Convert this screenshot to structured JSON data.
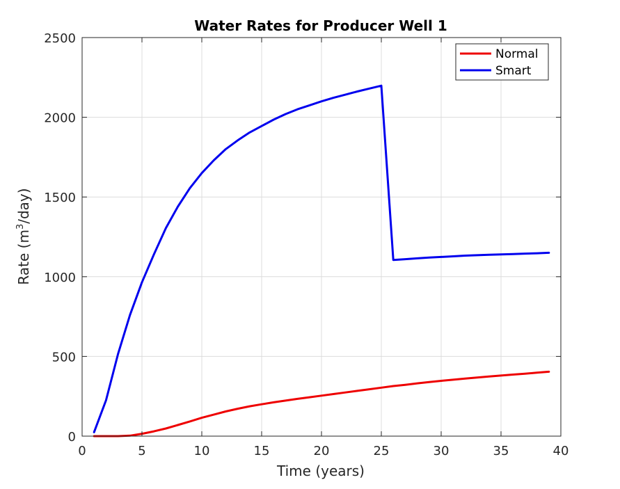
{
  "chart_data": {
    "type": "line",
    "title": "Water Rates for Producer Well 1",
    "xlabel": "Time (years)",
    "ylabel_main": "Rate (m",
    "ylabel_sup": "3",
    "ylabel_tail": "/day)",
    "xlim": [
      0,
      40
    ],
    "ylim": [
      0,
      2500
    ],
    "xticks": [
      0,
      5,
      10,
      15,
      20,
      25,
      30,
      35,
      40
    ],
    "yticks": [
      0,
      500,
      1000,
      1500,
      2000,
      2500
    ],
    "xtick_labels": [
      "0",
      "5",
      "10",
      "15",
      "20",
      "25",
      "30",
      "35",
      "40"
    ],
    "ytick_labels": [
      "0",
      "500",
      "1000",
      "1500",
      "2000",
      "2500"
    ],
    "grid": true,
    "legend_position": "top-right",
    "series": [
      {
        "name": "Normal",
        "color": "#ee0000",
        "x": [
          1,
          2,
          3,
          4,
          5,
          6,
          7,
          8,
          9,
          10,
          11,
          12,
          13,
          14,
          15,
          16,
          17,
          18,
          19,
          20,
          21,
          22,
          23,
          24,
          25,
          26,
          27,
          28,
          29,
          30,
          31,
          32,
          33,
          34,
          35,
          36,
          37,
          38,
          39
        ],
        "y": [
          0,
          0,
          0,
          3,
          15,
          30,
          48,
          70,
          92,
          115,
          135,
          155,
          172,
          187,
          200,
          212,
          223,
          234,
          244,
          254,
          264,
          274,
          284,
          294,
          304,
          314,
          322,
          331,
          339,
          347,
          354,
          361,
          368,
          374,
          380,
          386,
          392,
          398,
          404
        ]
      },
      {
        "name": "Smart",
        "color": "#0000ee",
        "x": [
          1,
          2,
          3,
          4,
          5,
          6,
          7,
          8,
          9,
          10,
          11,
          12,
          13,
          14,
          15,
          16,
          17,
          18,
          19,
          20,
          21,
          22,
          23,
          24,
          25,
          26,
          27,
          28,
          29,
          30,
          31,
          32,
          33,
          34,
          35,
          36,
          37,
          38,
          39
        ],
        "y": [
          25,
          225,
          515,
          760,
          965,
          1140,
          1305,
          1440,
          1555,
          1650,
          1730,
          1800,
          1855,
          1905,
          1945,
          1985,
          2020,
          2050,
          2075,
          2100,
          2122,
          2142,
          2162,
          2180,
          2198,
          1105,
          1110,
          1115,
          1120,
          1124,
          1128,
          1132,
          1135,
          1138,
          1140,
          1142,
          1145,
          1147,
          1150
        ]
      }
    ]
  }
}
